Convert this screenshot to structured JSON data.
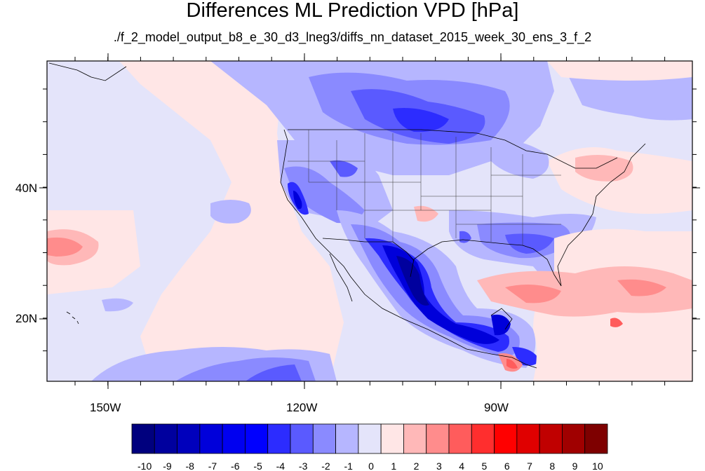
{
  "title": "Differences ML Prediction VPD [hPa]",
  "subtitle": "./f_2_model_output_b8_e_30_d3_lneg3/diffs_nn_dataset_2015_week_30_ens_3_f_2",
  "axes": {
    "lat_labels": [
      "40N",
      "20N"
    ],
    "lon_labels": [
      "150W",
      "120W",
      "90W"
    ]
  },
  "colorbar": {
    "labels": [
      "-10",
      "-9",
      "-8",
      "-7",
      "-6",
      "-5",
      "-4",
      "-3",
      "-2",
      "-1",
      "0",
      "1",
      "2",
      "3",
      "4",
      "5",
      "6",
      "7",
      "8",
      "9",
      "10"
    ],
    "colors": [
      "#00007e",
      "#00009e",
      "#0000bc",
      "#0000da",
      "#0000f0",
      "#0000ff",
      "#2c2cff",
      "#5a5aff",
      "#8a8aff",
      "#b6b6ff",
      "#e4e4fa",
      "#ffe6e6",
      "#ffb8b8",
      "#ff8c8c",
      "#ff5c5c",
      "#ff2e2e",
      "#ff0000",
      "#e00000",
      "#c00000",
      "#a00000",
      "#7e0000"
    ]
  },
  "map_colors": {
    "ocean_base": "#e4e4fa",
    "light_blue": "#b6b6ff",
    "mid_blue": "#8a8aff",
    "blue": "#5a5aff",
    "strong_blue": "#2c2cff",
    "deep_blue": "#0000da",
    "darkest_blue": "#00009e",
    "light_red": "#ffe6e6",
    "pink": "#ffb8b8",
    "red": "#ff8c8c",
    "strong_red": "#ff5c5c"
  }
}
